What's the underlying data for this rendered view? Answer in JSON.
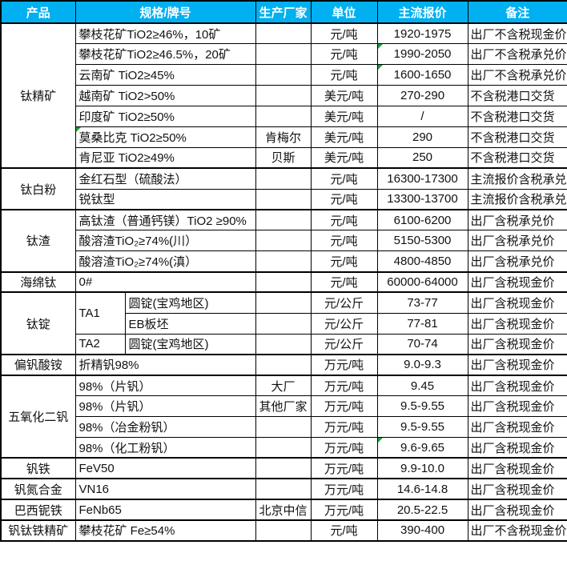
{
  "colors": {
    "header_bg": "#00B0F0",
    "header_text": "#FFFFFF",
    "border": "#000000",
    "comment_marker_green": "#1F9D38"
  },
  "table": {
    "columns": {
      "product": "产品",
      "spec": "规格/牌号",
      "maker": "生产厂家",
      "unit": "单位",
      "price": "主流报价",
      "note": "备注"
    },
    "groups": [
      {
        "product": "钛精矿",
        "rows": [
          {
            "spec": "攀枝花矿TiO2≥46%，10矿",
            "maker": "",
            "unit": "元/吨",
            "price": "1920-1975",
            "note": "出厂不含税现金价"
          },
          {
            "spec": "攀枝花矿TiO2≥46.5%，20矿",
            "maker": "",
            "unit": "元/吨",
            "price": "1990-2050",
            "note": "出厂不含税承兑价",
            "price_marker": true
          },
          {
            "spec": "云南矿 TiO2≥45%",
            "maker": "",
            "unit": "元/吨",
            "price": "1600-1650",
            "note": "出厂不含税承兑价",
            "price_marker": true
          },
          {
            "spec": "越南矿 TiO2>50%",
            "maker": "",
            "unit": "美元/吨",
            "price": "270-290",
            "note": "不含税港口交货"
          },
          {
            "spec": "印度矿 TiO2≥50%",
            "maker": "",
            "unit": "美元/吨",
            "price": "/",
            "note": "不含税港口交货"
          },
          {
            "spec": "莫桑比克 TiO2≥50%",
            "maker": "肯梅尔",
            "unit": "美元/吨",
            "price": "290",
            "note": "不含税港口交货",
            "spec_marker": true
          },
          {
            "spec": "肯尼亚 TiO2≥49%",
            "maker": "贝斯",
            "unit": "美元/吨",
            "price": "250",
            "note": "不含税港口交货"
          }
        ]
      },
      {
        "product": "钛白粉",
        "rows": [
          {
            "spec": "金红石型（硫酸法）",
            "maker": "",
            "unit": "元/吨",
            "price": "16300-17300",
            "note": "主流报价含税承兑"
          },
          {
            "spec": "锐钛型",
            "maker": "",
            "unit": "元/吨",
            "price": "13300-13700",
            "note": "主流报价含税承兑"
          }
        ]
      },
      {
        "product": "钛渣",
        "rows": [
          {
            "spec": "高钛渣（普通钙镁）TiO2 ≥90%",
            "maker": "",
            "unit": "元/吨",
            "price": "6100-6200",
            "note": "出厂含税承兑价"
          },
          {
            "spec": "酸溶渣TiO₂≥74%(川）",
            "maker": "",
            "unit": "元/吨",
            "price": "5150-5300",
            "note": "出厂含税承兑价"
          },
          {
            "spec": "酸溶渣TiO₂≥74%(滇）",
            "maker": "",
            "unit": "元/吨",
            "price": "4800-4850",
            "note": "出厂含税承兑价"
          }
        ]
      },
      {
        "product": "海绵钛",
        "rows": [
          {
            "spec": "0#",
            "maker": "",
            "unit": "元/吨",
            "price": "60000-64000",
            "note": "出厂含税现金价"
          }
        ]
      },
      {
        "product": "钛锭",
        "rows": [
          {
            "grade": "TA1",
            "grade_rowspan": 2,
            "spec": "圆锭(宝鸡地区)",
            "maker": "",
            "unit": "元/公斤",
            "price": "73-77",
            "note": "出厂含税现金价"
          },
          {
            "spec": "EB板坯",
            "maker": "",
            "unit": "元/公斤",
            "price": "77-81",
            "note": "出厂含税现金价"
          },
          {
            "grade": "TA2",
            "grade_rowspan": 1,
            "spec": "圆锭(宝鸡地区)",
            "maker": "",
            "unit": "元/公斤",
            "price": "70-74",
            "note": "出厂含税现金价"
          }
        ]
      },
      {
        "product": "偏钒酸铵",
        "rows": [
          {
            "spec": "折精钒98%",
            "maker": "",
            "unit": "万元/吨",
            "price": "9.0-9.3",
            "note": "出厂含税现金价"
          }
        ]
      },
      {
        "product": "五氧化二钒",
        "rows": [
          {
            "spec": "98%（片钒）",
            "maker": "大厂",
            "unit": "万元/吨",
            "price": "9.45",
            "note": "出厂含税现金价"
          },
          {
            "spec": "98%（片钒）",
            "maker": "其他厂家",
            "unit": "万元/吨",
            "price": "9.5-9.55",
            "note": "出厂含税现金价"
          },
          {
            "spec": "98%（冶金粉钒）",
            "maker": "",
            "unit": "万元/吨",
            "price": "9.5-9.55",
            "note": "出厂含税现金价"
          },
          {
            "spec": "98%（化工粉钒）",
            "maker": "",
            "unit": "万元/吨",
            "price": "9.6-9.65",
            "note": "出厂含税现金价",
            "price_marker": true
          }
        ]
      },
      {
        "product": "钒铁",
        "rows": [
          {
            "spec": "FeV50",
            "maker": "",
            "unit": "万元/吨",
            "price": "9.9-10.0",
            "note": "出厂含税现金价"
          }
        ]
      },
      {
        "product": "钒氮合金",
        "rows": [
          {
            "spec": "VN16",
            "maker": "",
            "unit": "万元/吨",
            "price": "14.6-14.8",
            "note": "出厂含税现金价"
          }
        ]
      },
      {
        "product": "巴西铌铁",
        "rows": [
          {
            "spec": "FeNb65",
            "maker": "北京中信",
            "unit": "万元/吨",
            "price": "20.5-22.5",
            "note": "出厂含税现金价"
          }
        ]
      },
      {
        "product": "钒钛铁精矿",
        "rows": [
          {
            "spec": "攀枝花矿 Fe≥54%",
            "maker": "",
            "unit": "元/吨",
            "price": "390-400",
            "note": "出厂不含税现金价"
          }
        ]
      }
    ]
  }
}
